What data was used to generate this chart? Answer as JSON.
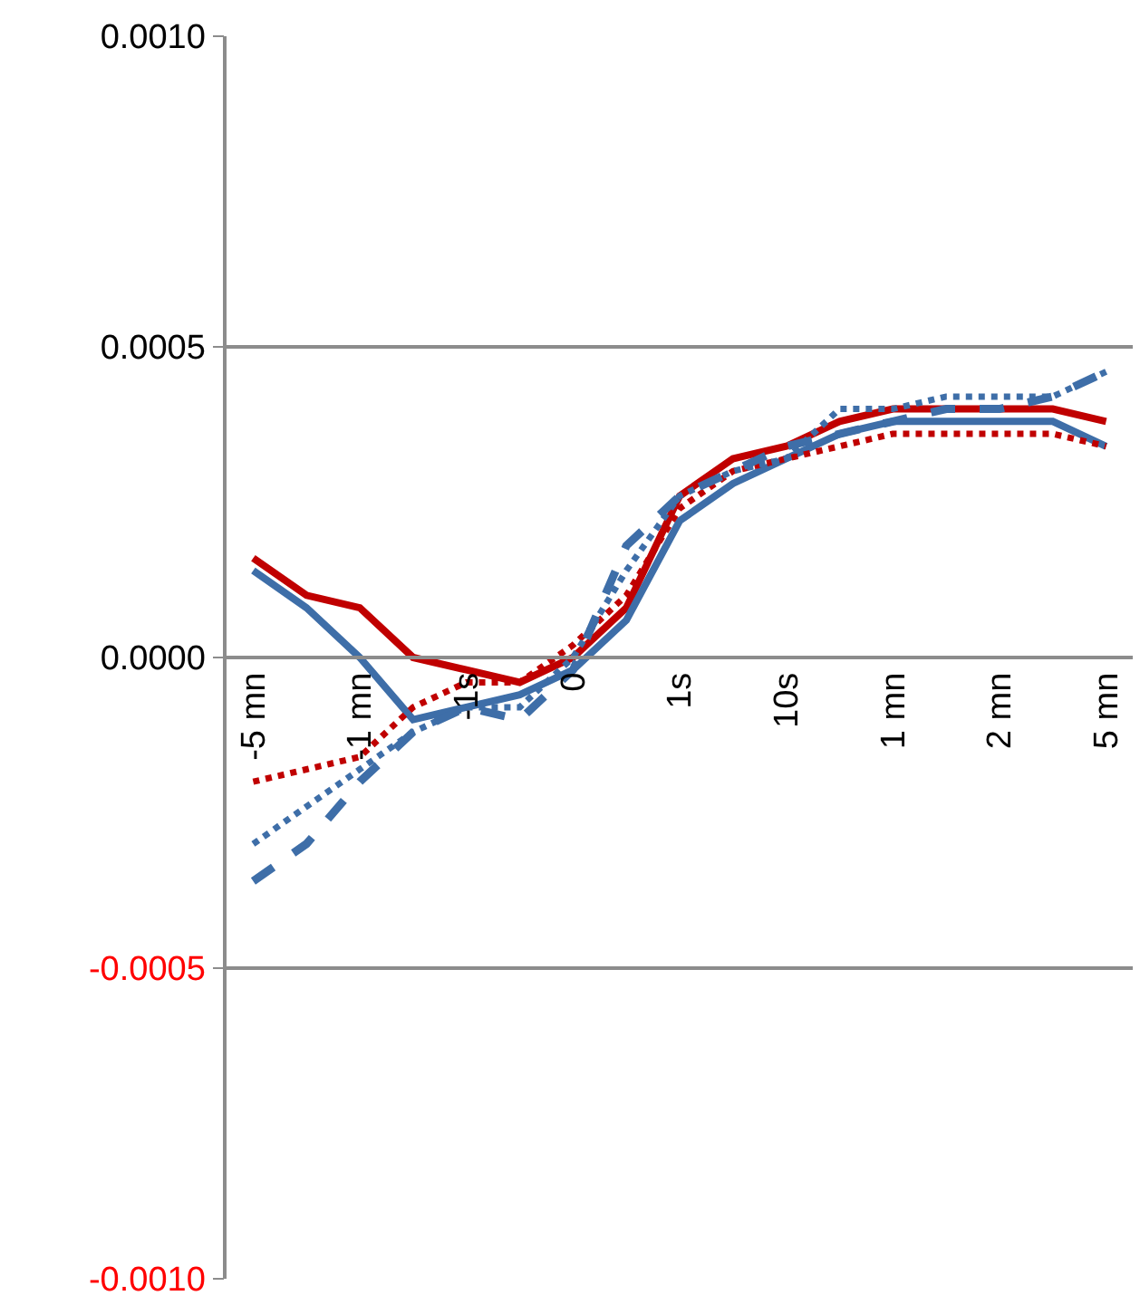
{
  "chart_data": {
    "type": "line",
    "categories": [
      "-5 mn",
      null,
      "-1 mn",
      null,
      "-1s",
      null,
      "0",
      null,
      "1s",
      null,
      "10s",
      null,
      "1 mn",
      null,
      "2 mn",
      null,
      "5 mn"
    ],
    "series": [
      {
        "color": "#c00000",
        "line_style": "solid",
        "values": [
          0.00016,
          0.0001,
          8e-05,
          0.0,
          -2e-05,
          -4e-05,
          0.0,
          8e-05,
          0.00026,
          0.00032,
          0.00034,
          0.00038,
          0.0004,
          0.0004,
          0.0004,
          0.0004,
          0.00038
        ]
      },
      {
        "color": "#3e6ea8",
        "line_style": "solid",
        "values": [
          0.00014,
          8e-05,
          0.0,
          -0.0001,
          -8e-05,
          -6e-05,
          -2e-05,
          6e-05,
          0.00022,
          0.00028,
          0.00032,
          0.00036,
          0.00038,
          0.00038,
          0.00038,
          0.00038,
          0.00034
        ]
      },
      {
        "color": "#c00000",
        "line_style": "dotted",
        "values": [
          -0.0002,
          -0.00018,
          -0.00016,
          -8e-05,
          -4e-05,
          -4e-05,
          2e-05,
          0.0001,
          0.00024,
          0.0003,
          0.00032,
          0.00034,
          0.00036,
          0.00036,
          0.00036,
          0.00036,
          0.00034
        ]
      },
      {
        "color": "#3e6ea8",
        "line_style": "dotted",
        "values": [
          -0.0003,
          -0.00024,
          -0.00018,
          -0.00012,
          -8e-05,
          -8e-05,
          0.0,
          0.00014,
          0.00026,
          0.0003,
          0.00032,
          0.0004,
          0.0004,
          0.00042,
          0.00042,
          0.00042,
          0.00046
        ]
      },
      {
        "color": "#3e6ea8",
        "line_style": "dashed",
        "values": [
          -0.00036,
          -0.0003,
          -0.0002,
          -0.00012,
          -8e-05,
          -0.0001,
          -2e-05,
          0.00018,
          0.00026,
          0.0003,
          0.00034,
          0.00036,
          0.00038,
          0.0004,
          0.0004,
          0.00042,
          0.00046
        ]
      }
    ],
    "ylim": [
      -0.001,
      0.001
    ],
    "yticks": [
      {
        "value": -0.001,
        "label": "-0.0010"
      },
      {
        "value": -0.0005,
        "label": "-0.0005"
      },
      {
        "value": 0,
        "label": "0.0000"
      },
      {
        "value": 0.0005,
        "label": "0.0005"
      },
      {
        "value": 0.001,
        "label": "0.0010"
      }
    ],
    "grid": "y",
    "marker": "none"
  }
}
